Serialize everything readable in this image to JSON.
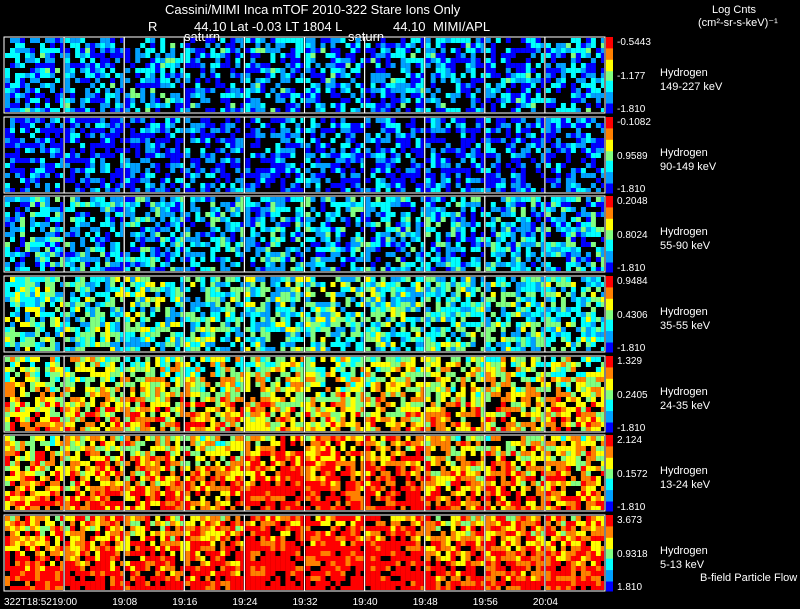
{
  "header": {
    "title": "Cassini/MIMI Inca mTOF  2010-322    Stare    Ions Only",
    "r_prefix": "R",
    "position_line": "44.10 Lat -0.03 LT 1804 L",
    "position_value": "44.10",
    "institution": "MIMI/APL",
    "saturn_label_1": "saturn",
    "saturn_label_2": "saturn"
  },
  "colorbar_title": {
    "line1": "Log Cnts",
    "line2": "(cm²-sr-s-keV)⁻¹"
  },
  "rows": [
    {
      "species": "Hydrogen",
      "energy": "149-227 keV",
      "cb_max": "-0.5443",
      "cb_mid": "-1.177",
      "cb_min": "-1.810",
      "level": 0.22
    },
    {
      "species": "Hydrogen",
      "energy": "90-149 keV",
      "cb_max": "-0.1082",
      "cb_mid": "0.9589",
      "cb_min": "-1.810",
      "level": 0.15
    },
    {
      "species": "Hydrogen",
      "energy": "55-90 keV",
      "cb_max": "0.2048",
      "cb_mid": "0.8024",
      "cb_min": "-1.810",
      "level": 0.28
    },
    {
      "species": "Hydrogen",
      "energy": "35-55 keV",
      "cb_max": "0.9484",
      "cb_mid": "0.4306",
      "cb_min": "-1.810",
      "level": 0.4
    },
    {
      "species": "Hydrogen",
      "energy": "24-35 keV",
      "cb_max": "1.329",
      "cb_mid": "0.2405",
      "cb_min": "-1.810",
      "level": 0.52
    },
    {
      "species": "Hydrogen",
      "energy": "13-24 keV",
      "cb_max": "2.124",
      "cb_mid": "0.1572",
      "cb_min": "-1.810",
      "level": 0.62
    },
    {
      "species": "Hydrogen",
      "energy": "5-13 keV",
      "cb_max": "3.673",
      "cb_mid": "0.9318",
      "cb_min": "1.810",
      "level": 0.72
    }
  ],
  "footer_note": "B-field Particle Flow",
  "time_ticks": [
    "322T18:52",
    "19:00",
    "19:08",
    "19:16",
    "19:24",
    "19:32",
    "19:40",
    "19:48",
    "19:56",
    "20:04"
  ],
  "colors": {
    "background": "#000000",
    "border": "#ffffff",
    "scale": [
      "#0000ff",
      "#00a0ff",
      "#00ffff",
      "#80ff80",
      "#ffff00",
      "#ff8000",
      "#ff0000"
    ]
  }
}
